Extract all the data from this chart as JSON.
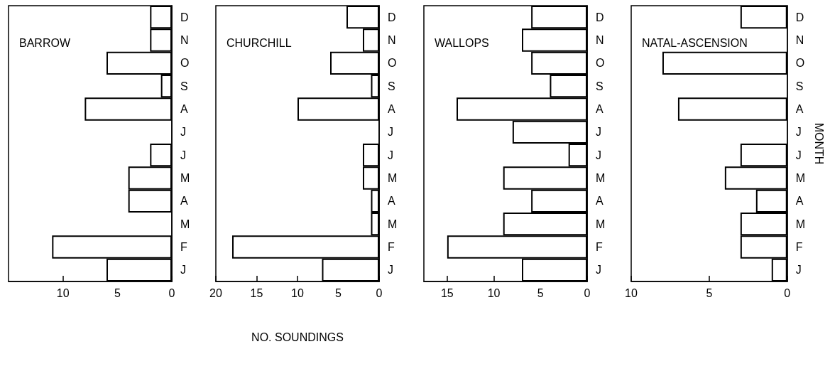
{
  "chart_data": [
    {
      "type": "bar",
      "orientation": "horizontal",
      "title": "BARROW",
      "categories": [
        "D",
        "N",
        "O",
        "S",
        "A",
        "J",
        "J",
        "M",
        "A",
        "M",
        "F",
        "J"
      ],
      "values": [
        2,
        2,
        6,
        1,
        8,
        0,
        2,
        4,
        4,
        0,
        11,
        6
      ],
      "color": "#ffffff",
      "xlim": [
        15,
        0
      ],
      "xticks": [
        10,
        5,
        0
      ],
      "grid": false
    },
    {
      "type": "bar",
      "orientation": "horizontal",
      "title": "CHURCHILL",
      "xlabel": "NO. SOUNDINGS",
      "categories": [
        "D",
        "N",
        "O",
        "S",
        "A",
        "J",
        "J",
        "M",
        "A",
        "M",
        "F",
        "J"
      ],
      "values": [
        4,
        2,
        6,
        1,
        10,
        0,
        2,
        2,
        1,
        1,
        18,
        7
      ],
      "color": "#ffffff",
      "xlim": [
        20,
        0
      ],
      "xticks": [
        20,
        15,
        10,
        5,
        0
      ],
      "grid": false
    },
    {
      "type": "bar",
      "orientation": "horizontal",
      "title": "WALLOPS",
      "categories": [
        "D",
        "N",
        "O",
        "S",
        "A",
        "J",
        "J",
        "M",
        "A",
        "M",
        "F",
        "J"
      ],
      "values": [
        6,
        7,
        6,
        4,
        14,
        8,
        2,
        9,
        6,
        9,
        15,
        7
      ],
      "color": "#ffffff",
      "xlim": [
        17.5,
        0
      ],
      "xticks": [
        15,
        10,
        5,
        0
      ],
      "grid": false
    },
    {
      "type": "bar",
      "orientation": "horizontal",
      "title": "NATAL-ASCENSION",
      "ylabel": "MONTH",
      "categories": [
        "D",
        "N",
        "O",
        "S",
        "A",
        "J",
        "J",
        "M",
        "A",
        "M",
        "F",
        "J"
      ],
      "values": [
        3,
        0,
        8,
        0,
        7,
        0,
        3,
        4,
        2,
        3,
        3,
        1
      ],
      "color": "#ffffff",
      "xlim": [
        10,
        0
      ],
      "xticks": [
        10,
        5,
        0
      ],
      "grid": false
    }
  ]
}
